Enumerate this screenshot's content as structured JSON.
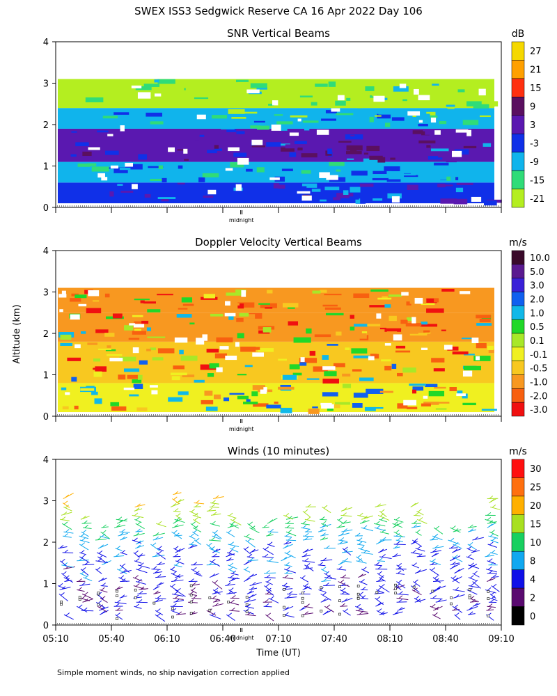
{
  "figure": {
    "title": "SWEX ISS3 Sedgwick Reserve CA  16 Apr 2022 Day 106",
    "ylabel": "Altitude (km)",
    "xlabel": "Time (UT)",
    "footnote": "Simple moment winds, no ship navigation correction applied",
    "midnight_label": "midnight",
    "x_ticks": [
      "05:10",
      "05:40",
      "06:10",
      "06:40",
      "07:10",
      "07:40",
      "08:10",
      "08:40",
      "09:10"
    ],
    "y_ticks": [
      "0",
      "1",
      "2",
      "3",
      "4"
    ]
  },
  "chart_data": [
    {
      "type": "heatmap",
      "title": "SNR Vertical Beams",
      "units": "dB",
      "colorbar_labels": [
        "27",
        "21",
        "15",
        "9",
        "3",
        "-3",
        "-9",
        "-15",
        "-21"
      ],
      "colorbar_colors": [
        "#f5d800",
        "#ffa000",
        "#ff3010",
        "#5a1060",
        "#5a18b0",
        "#1030e8",
        "#10b4ec",
        "#30dc78",
        "#b4ee20"
      ],
      "clim": [
        -21,
        30
      ],
      "xlim": [
        "05:10",
        "09:10"
      ],
      "ylim": [
        0,
        4
      ],
      "grid": false,
      "bands": [
        {
          "range_km": [
            0.1,
            0.6
          ],
          "value_db": -2
        },
        {
          "range_km": [
            0.6,
            1.1
          ],
          "value_db": -9
        },
        {
          "range_km": [
            1.1,
            1.9
          ],
          "value_db": 2
        },
        {
          "range_km": [
            1.9,
            2.4
          ],
          "value_db": -12
        },
        {
          "range_km": [
            2.4,
            3.1
          ],
          "value_db": -19
        }
      ]
    },
    {
      "type": "heatmap",
      "title": "Doppler Velocity Vertical Beams",
      "units": "m/s",
      "colorbar_labels": [
        "10.0",
        "5.0",
        "3.0",
        "2.0",
        "1.0",
        "0.5",
        "0.1",
        "-0.1",
        "-0.5",
        "-1.0",
        "-2.0",
        "-3.0"
      ],
      "colorbar_colors": [
        "#3a0a2a",
        "#5a1a90",
        "#3a20d8",
        "#1060f0",
        "#10b8e8",
        "#20d828",
        "#a8e828",
        "#f0f020",
        "#f8c820",
        "#f89820",
        "#f86010",
        "#f01010"
      ],
      "clim": [
        -3.0,
        10.0
      ],
      "xlim": [
        "05:10",
        "09:10"
      ],
      "ylim": [
        0,
        4
      ],
      "grid": false,
      "bands": [
        {
          "range_km": [
            0.1,
            0.8
          ],
          "value_ms": -0.2
        },
        {
          "range_km": [
            0.8,
            1.8
          ],
          "value_ms": -0.6
        },
        {
          "range_km": [
            1.8,
            2.5
          ],
          "value_ms": -0.8
        },
        {
          "range_km": [
            2.5,
            3.1
          ],
          "value_ms": -1.5
        }
      ]
    },
    {
      "type": "scatter",
      "title": "Winds (10 minutes)",
      "units": "m/s",
      "colorbar_labels": [
        "30",
        "25",
        "20",
        "15",
        "10",
        "8",
        "4",
        "2",
        "0"
      ],
      "colorbar_colors": [
        "#ff1010",
        "#ff7010",
        "#ffb000",
        "#a8e020",
        "#18d060",
        "#10a8f0",
        "#1010e8",
        "#5a0a70",
        "#000000"
      ],
      "clim": [
        0,
        34
      ],
      "xlim": [
        "05:10",
        "09:10"
      ],
      "ylim": [
        0,
        4
      ],
      "grid": false,
      "profile_times": [
        "05:10",
        "05:20",
        "05:30",
        "05:40",
        "05:50",
        "06:00",
        "06:10",
        "06:20",
        "06:30",
        "06:40",
        "06:50",
        "07:00",
        "07:10",
        "07:20",
        "07:30",
        "07:40",
        "07:50",
        "08:00",
        "08:10",
        "08:20",
        "08:30",
        "08:40",
        "08:50",
        "09:00"
      ],
      "speed_profile": [
        {
          "altitude_km": 0.2,
          "speed_ms": 3
        },
        {
          "altitude_km": 1.0,
          "speed_ms": 4
        },
        {
          "altitude_km": 1.8,
          "speed_ms": 6
        },
        {
          "altitude_km": 2.3,
          "speed_ms": 9
        },
        {
          "altitude_km": 2.7,
          "speed_ms": 14
        },
        {
          "altitude_km": 3.0,
          "speed_ms": 18
        }
      ]
    }
  ]
}
